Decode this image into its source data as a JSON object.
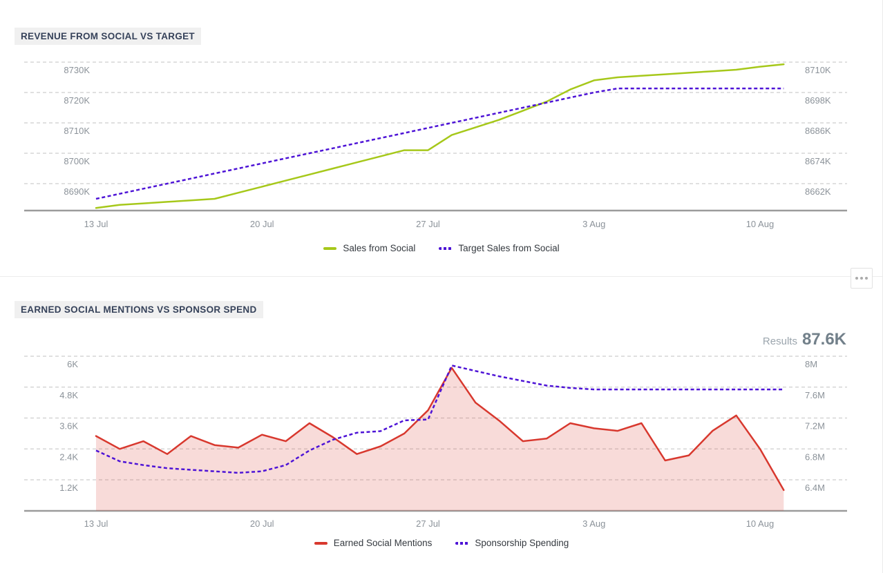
{
  "theme": {
    "grid_color": "#cdcdcd",
    "axis_color": "#9b9b9b",
    "tick_label_color": "#8b9299",
    "title_color": "#36425a",
    "title_bg": "#f0f0f0",
    "legend_text_color": "#34393f",
    "results_label_color": "#9ba5ad",
    "results_value_color": "#72808a"
  },
  "icons": {
    "more_options": "ellipsis"
  },
  "chart_data": [
    {
      "type": "line",
      "title": "REVENUE FROM SOCIAL VS TARGET",
      "grid": true,
      "legend_position": "bottom",
      "x_tick_labels": [
        "13 Jul",
        "20 Jul",
        "27 Jul",
        "3 Aug",
        "10 Aug"
      ],
      "x_tick_day_indices": [
        0,
        7,
        14,
        21,
        28
      ],
      "points_per_series": 30,
      "left_axis": {
        "tick_labels": [
          "8730K",
          "8720K",
          "8710K",
          "8700K",
          "8690K"
        ],
        "top_value": 8730,
        "step": 10,
        "unit": "K"
      },
      "right_axis": {
        "tick_labels": [
          "8710K",
          "8698K",
          "8686K",
          "8674K",
          "8662K"
        ],
        "top_value": 8710,
        "step": 12,
        "unit": "K"
      },
      "series": [
        {
          "name": "Sales from Social",
          "color": "#a6c81a",
          "style": "solid",
          "axis": "left",
          "fill": false,
          "values": [
            8682,
            8683,
            8683.5,
            8684,
            8684.5,
            8685,
            8687,
            8689,
            8691,
            8693,
            8695,
            8697,
            8699,
            8701,
            8701,
            8706,
            8708.5,
            8711,
            8714,
            8717,
            8721,
            8724,
            8725,
            8725.5,
            8726,
            8726.5,
            8727,
            8727.5,
            8728.5,
            8729.3
          ]
        },
        {
          "name": "Target Sales from Social",
          "color": "#4d13d6",
          "style": "dashed",
          "axis": "right",
          "fill": false,
          "values": [
            8656,
            8658,
            8660,
            8662,
            8664,
            8666,
            8668,
            8670,
            8672,
            8674,
            8676,
            8678,
            8680,
            8682,
            8684,
            8686,
            8688,
            8690,
            8692,
            8694,
            8696,
            8698,
            8699.6,
            8699.6,
            8699.6,
            8699.6,
            8699.6,
            8699.6,
            8699.6,
            8699.6
          ]
        }
      ]
    },
    {
      "type": "area",
      "title": "EARNED SOCIAL MENTIONS VS SPONSOR SPEND",
      "results_label": "Results",
      "results_value": "87.6K",
      "grid": true,
      "legend_position": "bottom",
      "x_tick_labels": [
        "13 Jul",
        "20 Jul",
        "27 Jul",
        "3 Aug",
        "10 Aug"
      ],
      "x_tick_day_indices": [
        0,
        7,
        14,
        21,
        28
      ],
      "points_per_series": 30,
      "left_axis": {
        "tick_labels": [
          "6K",
          "4.8K",
          "3.6K",
          "2.4K",
          "1.2K"
        ],
        "top_value": 6,
        "step": 1.2,
        "unit": "K"
      },
      "right_axis": {
        "tick_labels": [
          "8M",
          "7.6M",
          "7.2M",
          "6.8M",
          "6.4M"
        ],
        "top_value": 8,
        "step": 0.4,
        "unit": "M"
      },
      "series": [
        {
          "name": "Earned Social Mentions",
          "color": "#d8382e",
          "style": "solid",
          "axis": "left",
          "fill": true,
          "fill_color": "#d8382e",
          "fill_opacity": 0.18,
          "values": [
            2.9,
            2.4,
            2.7,
            2.2,
            2.9,
            2.55,
            2.45,
            2.95,
            2.7,
            3.4,
            2.85,
            2.2,
            2.5,
            3.0,
            3.9,
            5.55,
            4.2,
            3.5,
            2.7,
            2.8,
            3.4,
            3.2,
            3.1,
            3.4,
            1.95,
            2.15,
            3.1,
            3.7,
            2.4,
            0.8
          ]
        },
        {
          "name": "Sponsorship Spending",
          "color": "#4d13d6",
          "style": "dashed",
          "axis": "right",
          "fill": false,
          "values": [
            6.78,
            6.64,
            6.59,
            6.55,
            6.53,
            6.51,
            6.49,
            6.51,
            6.59,
            6.78,
            6.92,
            7.01,
            7.03,
            7.17,
            7.18,
            7.88,
            7.81,
            7.74,
            7.68,
            7.62,
            7.59,
            7.57,
            7.57,
            7.57,
            7.57,
            7.57,
            7.57,
            7.57,
            7.57,
            7.57
          ]
        }
      ]
    }
  ]
}
